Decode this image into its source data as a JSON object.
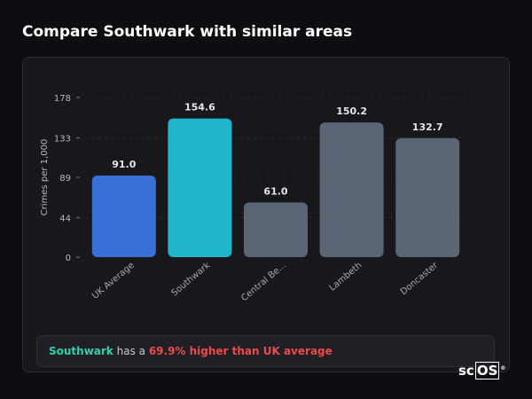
{
  "header": {
    "title": "Compare Southwark with similar areas"
  },
  "summary": {
    "area": "Southwark",
    "middle": " has a ",
    "difference": "69.9% higher than UK average"
  },
  "logo": {
    "prefix": "sc",
    "boxed": "OS",
    "mark": "®"
  },
  "colors": {
    "uk_average": "#3a6fd8",
    "highlight": "#1fb6cc",
    "other": "#5a6576",
    "positive_text": "#2fd1a6",
    "negative_text": "#ef4a4a"
  },
  "chart_data": {
    "type": "bar",
    "categories": [
      "UK Average",
      "Southwark",
      "Central Be...",
      "Lambeth",
      "Doncaster"
    ],
    "values": [
      91.0,
      154.6,
      61.0,
      150.2,
      132.7
    ],
    "value_labels": [
      "91.0",
      "154.6",
      "61.0",
      "150.2",
      "132.7"
    ],
    "bar_roles": [
      "uk_average",
      "highlight",
      "other",
      "other",
      "other"
    ],
    "ylabel": "Crimes per 1,000",
    "xlabel": "",
    "yticks": [
      0,
      44,
      89,
      133,
      178
    ],
    "ylim": [
      0,
      178
    ],
    "grid": true
  }
}
